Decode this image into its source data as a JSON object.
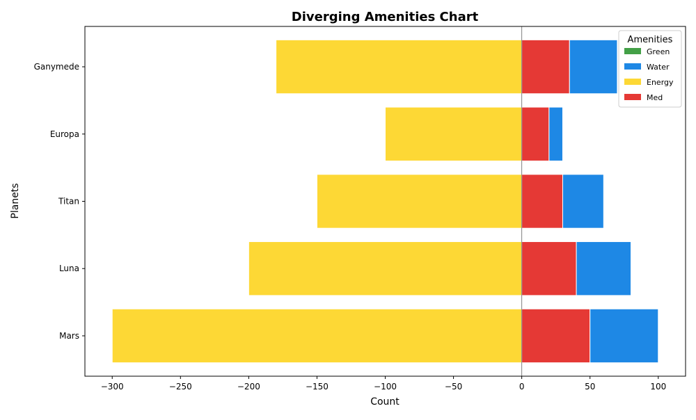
{
  "chart_data": {
    "type": "bar",
    "orientation": "horizontal",
    "stacked": true,
    "diverging": true,
    "title": "Diverging Amenities Chart",
    "xlabel": "Count",
    "ylabel": "Planets",
    "xlim": [
      -320,
      120
    ],
    "xticks": [
      -300,
      -250,
      -200,
      -150,
      -100,
      -50,
      0,
      50,
      100
    ],
    "xtick_labels": [
      "−300",
      "−250",
      "−200",
      "−150",
      "−100",
      "−50",
      "0",
      "50",
      "100"
    ],
    "categories": [
      "Mars",
      "Luna",
      "Titan",
      "Europa",
      "Ganymede"
    ],
    "series": [
      {
        "name": "Green",
        "color": "#43a047",
        "values": [
          0,
          0,
          0,
          0,
          0
        ]
      },
      {
        "name": "Water",
        "color": "#1e88e5",
        "values": [
          50,
          40,
          30,
          10,
          35
        ]
      },
      {
        "name": "Energy",
        "color": "#fdd835",
        "values": [
          -300,
          -200,
          -150,
          -100,
          -180
        ]
      },
      {
        "name": "Med",
        "color": "#e53935",
        "values": [
          50,
          40,
          30,
          20,
          35
        ]
      }
    ],
    "stack_order": [
      "Med",
      "Water",
      "Green"
    ],
    "legend": {
      "title": "Amenities",
      "position": "top-right",
      "items": [
        "Green",
        "Water",
        "Energy",
        "Med"
      ]
    },
    "zero_line_color": "#808080"
  }
}
